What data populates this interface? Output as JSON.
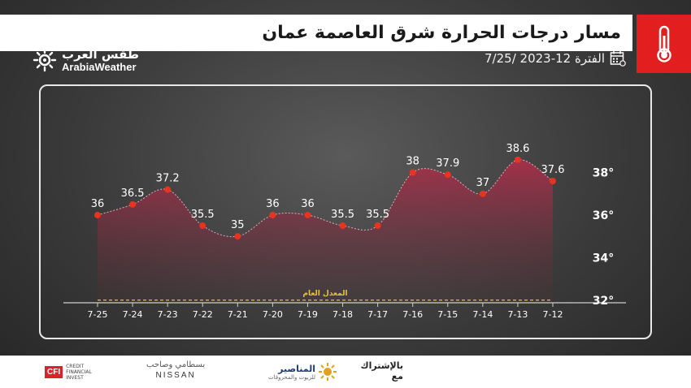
{
  "header": {
    "title": "مسار درجات الحرارة شرق العاصمة عمان",
    "period": "الفترة 12-2023 /7/25"
  },
  "brand": {
    "name_ar": "طقس العرب",
    "name_en": "ArabiaWeather"
  },
  "colors": {
    "accent": "#e21e1e",
    "point": "#e8331f",
    "fill_top": "#a8304a",
    "avg_line": "#e8c430"
  },
  "icons": {
    "thermometer": "thermometer-icon",
    "calendar": "calendar-icon",
    "logo": "sun-swirl-logo-icon"
  },
  "chart_data": {
    "type": "area",
    "categories": [
      "7-25",
      "7-24",
      "7-23",
      "7-22",
      "7-21",
      "7-20",
      "7-19",
      "7-18",
      "7-17",
      "7-16",
      "7-15",
      "7-14",
      "7-13",
      "7-12"
    ],
    "values": [
      36,
      36.5,
      37.2,
      35.5,
      35,
      36,
      36,
      35.5,
      35.5,
      38,
      37.9,
      37,
      38.6,
      37.6
    ],
    "y_ticks": [
      "38°",
      "36°",
      "34°",
      "32°"
    ],
    "ylim": [
      31.8,
      39.6
    ],
    "average_value": 32,
    "average_label": "المعدل العام",
    "grid": false,
    "axis_position": "right"
  },
  "footer": {
    "sponsor_label": "بالإشتراك مع",
    "sponsor1": "المناصير",
    "sponsor1_sub": "للزيوت والمحروقات",
    "sponsor2_ar": "بسطامي وصاحب",
    "sponsor2_en": "NISSAN",
    "sponsor3": "CFI",
    "sponsor3_sub": "CREDIT FINANCIAL INVEST"
  }
}
